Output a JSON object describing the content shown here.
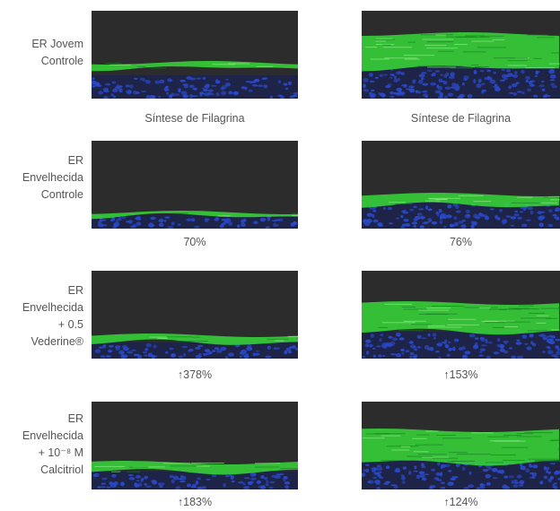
{
  "rows": [
    {
      "label_lines": [
        "ER Jovem",
        "Controle"
      ],
      "left_caption": "Síntese de Filagrina",
      "right_caption": "Síntese de Filagrina"
    },
    {
      "label_lines": [
        "ER",
        "Envelhecida",
        "Controle"
      ],
      "left_caption": "70%",
      "right_caption": "76%"
    },
    {
      "label_lines": [
        "ER",
        "Envelhecida",
        "+ 0.5",
        "Vederine®"
      ],
      "left_caption": "↑378%",
      "right_caption": "↑153%"
    },
    {
      "label_lines": [
        "ER",
        "Envelhecida",
        "+ 10⁻⁸ M",
        "Calcitriol"
      ],
      "left_caption": "↑183%",
      "right_caption": "↑124%"
    }
  ],
  "colors": {
    "background": "#2c2c2c",
    "stain_green": "#37d93a",
    "nuclei_blue": "#2a48c8"
  }
}
